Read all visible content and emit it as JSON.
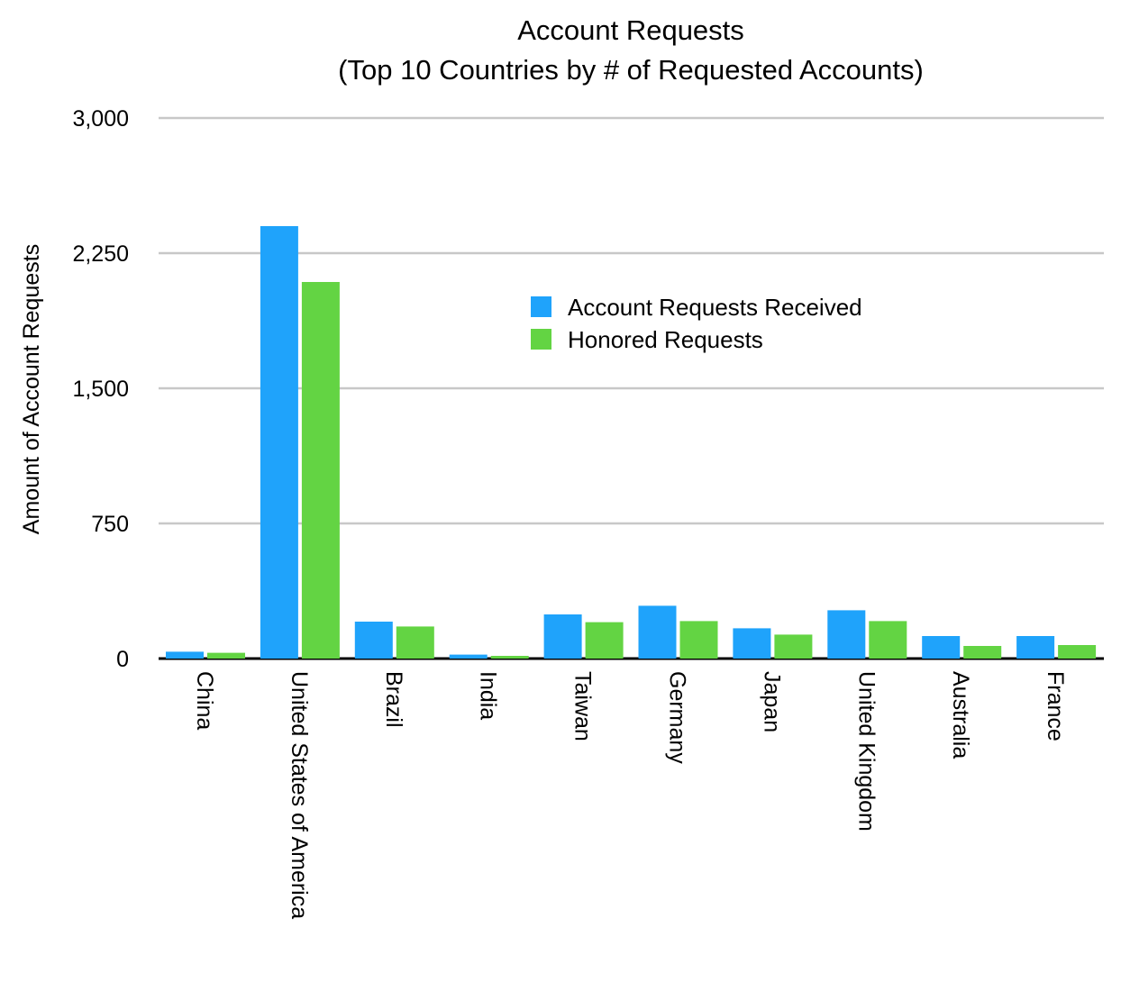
{
  "chart_data": {
    "type": "bar",
    "title": "Account Requests",
    "subtitle": "(Top 10 Countries by # of Requested Accounts)",
    "xlabel": "",
    "ylabel": "Amount of Account Requests",
    "ylim": [
      0,
      3000
    ],
    "yticks": [
      0,
      750,
      1500,
      2250,
      3000
    ],
    "ytick_labels": [
      "0",
      "750",
      "1,500",
      "2,250",
      "3,000"
    ],
    "grid": true,
    "legend_position": "top-right",
    "categories": [
      "China",
      "United States of America",
      "Brazil",
      "India",
      "Taiwan",
      "Germany",
      "Japan",
      "United Kingdom",
      "Australia",
      "France"
    ],
    "series": [
      {
        "name": "Account Requests Received",
        "color": "#1fa3fb",
        "values": [
          38,
          2400,
          205,
          22,
          245,
          293,
          168,
          268,
          125,
          125
        ]
      },
      {
        "name": "Honored Requests",
        "color": "#63d443",
        "values": [
          32,
          2090,
          178,
          15,
          202,
          208,
          133,
          208,
          70,
          75
        ]
      }
    ]
  }
}
